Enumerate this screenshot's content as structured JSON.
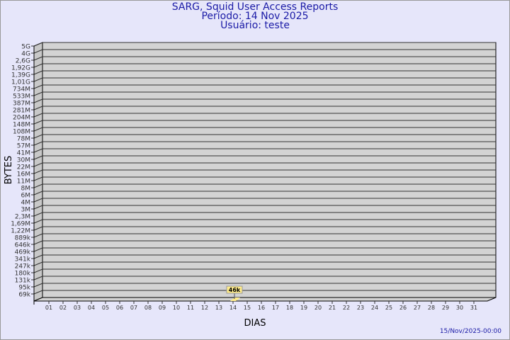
{
  "chart_data": {
    "type": "bar",
    "title": "SARG, Squid User Access Reports",
    "subtitle": [
      "Período: 14 Nov 2025",
      "Usuário: teste"
    ],
    "xlabel": "DIAS",
    "ylabel": "BYTES",
    "y_scale": "log",
    "y_tick_labels": [
      "5G",
      "4G",
      "2,6G",
      "1,92G",
      "1,39G",
      "1,01G",
      "734M",
      "533M",
      "387M",
      "281M",
      "204M",
      "148M",
      "108M",
      "78M",
      "57M",
      "41M",
      "30M",
      "22M",
      "16M",
      "11M",
      "8M",
      "6M",
      "4M",
      "3M",
      "2,3M",
      "1,69M",
      "1,22M",
      "889k",
      "646k",
      "469k",
      "341k",
      "247k",
      "180k",
      "131k",
      "95k",
      "69k"
    ],
    "categories": [
      "01",
      "02",
      "03",
      "04",
      "05",
      "06",
      "07",
      "08",
      "09",
      "10",
      "11",
      "12",
      "13",
      "14",
      "15",
      "16",
      "17",
      "18",
      "19",
      "20",
      "21",
      "22",
      "23",
      "24",
      "25",
      "26",
      "27",
      "28",
      "29",
      "30",
      "31"
    ],
    "values": [
      {
        "day": "14",
        "value": "46k"
      }
    ],
    "grid": true,
    "colors": {
      "background": "#e6e6fa",
      "plot": "#d3d3d3",
      "bar": "#ffec8b",
      "title": "#1a1aa6"
    }
  },
  "footer": {
    "timestamp": "15/Nov/2025-00:00"
  }
}
